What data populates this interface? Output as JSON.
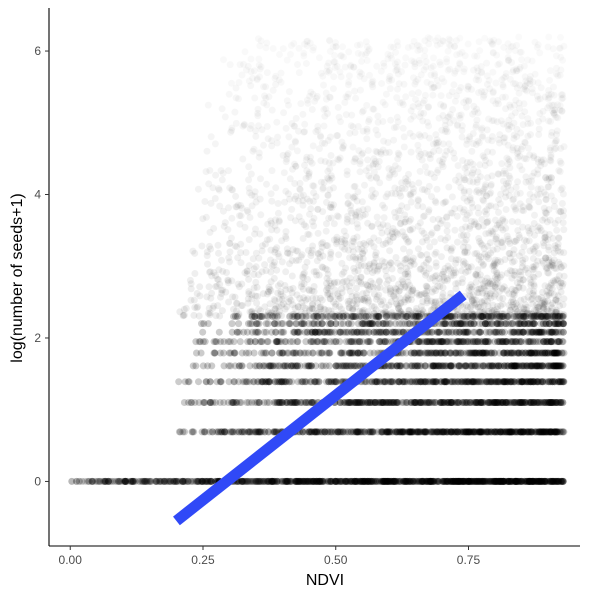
{
  "chart_data": {
    "type": "scatter",
    "title": "",
    "xlabel": "NDVI",
    "ylabel": "log(number of seeds+1)",
    "xlim": [
      -0.04,
      0.96
    ],
    "ylim": [
      -0.9,
      6.6
    ],
    "x_ticks": [
      0.0,
      0.25,
      0.5,
      0.75
    ],
    "x_tick_labels": [
      "0.00",
      "0.25",
      "0.50",
      "0.75"
    ],
    "y_ticks": [
      0,
      2,
      4,
      6
    ],
    "y_tick_labels": [
      "0",
      "2",
      "4",
      "6"
    ],
    "grid": false,
    "legend": "none",
    "point_color": "#000000",
    "point_alpha": 0.05,
    "points_summary": {
      "x_range": [
        0.0,
        0.93
      ],
      "y_levels_dense": [
        0.0,
        0.69,
        1.1,
        1.39,
        1.61,
        1.79,
        1.95,
        2.08,
        2.2,
        2.3
      ],
      "y_max": 6.2,
      "note_cloud": "Dense point cloud of log(k+1) values; density highest at y=0 and decreasing upward, centered around NDVI 0.6-0.8"
    },
    "trend_line": {
      "type": "linear",
      "color": "#3049f7",
      "x": [
        0.2,
        0.74
      ],
      "y": [
        -0.55,
        2.6
      ]
    }
  }
}
